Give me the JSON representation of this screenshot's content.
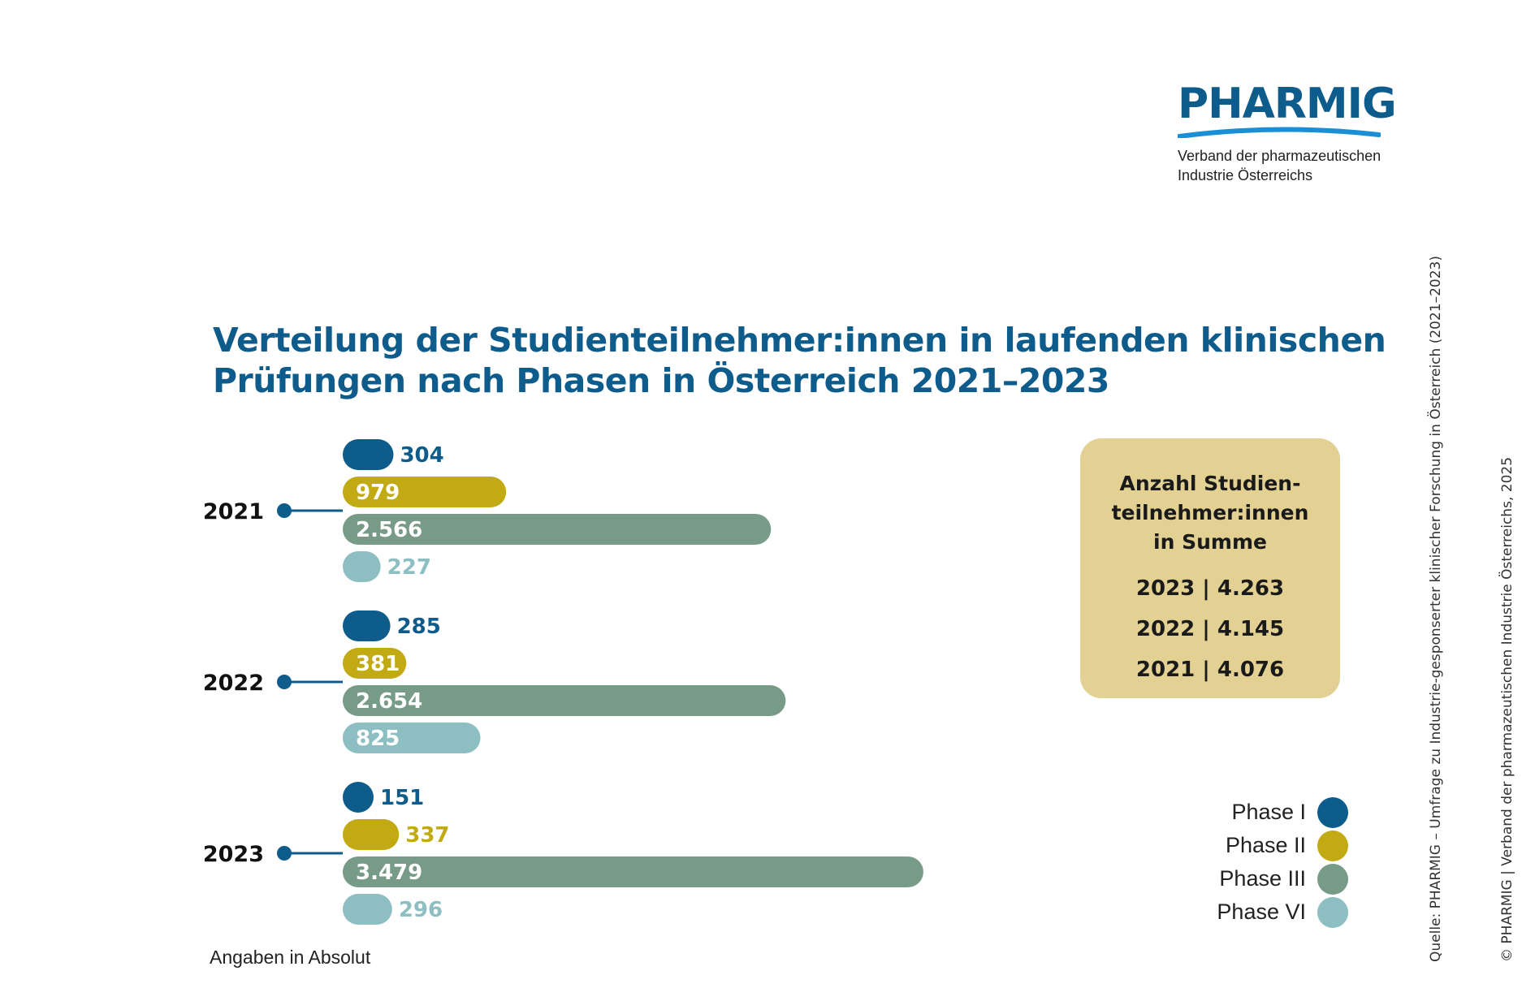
{
  "logo": {
    "wordmark": "PHARMIG",
    "subline1": "Verband der pharmazeutischen",
    "subline2": "Industrie Österreichs"
  },
  "title": {
    "line1": "Verteilung der Studienteilnehmer:innen in laufenden klinischen",
    "line2": "Prüfungen nach Phasen in Österreich 2021–2023"
  },
  "chart_data": {
    "type": "bar",
    "orientation": "horizontal",
    "categories": [
      "2021",
      "2022",
      "2023"
    ],
    "series": [
      {
        "name": "Phase I",
        "color": "#0d5c8c",
        "values": [
          304,
          285,
          151
        ],
        "labels": [
          "304",
          "285",
          "151"
        ]
      },
      {
        "name": "Phase II",
        "color": "#c2aa14",
        "values": [
          979,
          381,
          337
        ],
        "labels": [
          "979",
          "381",
          "337"
        ]
      },
      {
        "name": "Phase III",
        "color": "#789b87",
        "values": [
          2566,
          2654,
          3479
        ],
        "labels": [
          "2.566",
          "2.654",
          "3.479"
        ]
      },
      {
        "name": "Phase VI",
        "color": "#8dbec2",
        "values": [
          227,
          825,
          296
        ],
        "labels": [
          "227",
          "825",
          "296"
        ]
      }
    ],
    "legend_position": "bottom-right",
    "grid": false
  },
  "totals": {
    "heading_line1": "Anzahl Studien-",
    "heading_line2": "teilnehmer:innen",
    "heading_line3": "in Summe",
    "rows": [
      "2023 | 4.263",
      "2022 | 4.145",
      "2021 | 4.076"
    ]
  },
  "legend": [
    {
      "label": "Phase I",
      "color": "#0d5c8c"
    },
    {
      "label": "Phase II",
      "color": "#c2aa14"
    },
    {
      "label": "Phase III",
      "color": "#789b87"
    },
    {
      "label": "Phase VI",
      "color": "#8dbec2"
    }
  ],
  "footnote": "Angaben in Absolut",
  "source": "Quelle: PHARMIG – Umfrage zu Industrie-gesponserter klinischer Forschung in Österreich (2021–2023)",
  "copyright": "© PHARMIG | Verband der pharmazeutischen Industrie Österreichs, 2025",
  "colors": {
    "brand": "#0d5c8c",
    "logo_swoosh": "#1b8fd6",
    "totals_box": "#e3d193",
    "connector": "#0d5c8c"
  }
}
